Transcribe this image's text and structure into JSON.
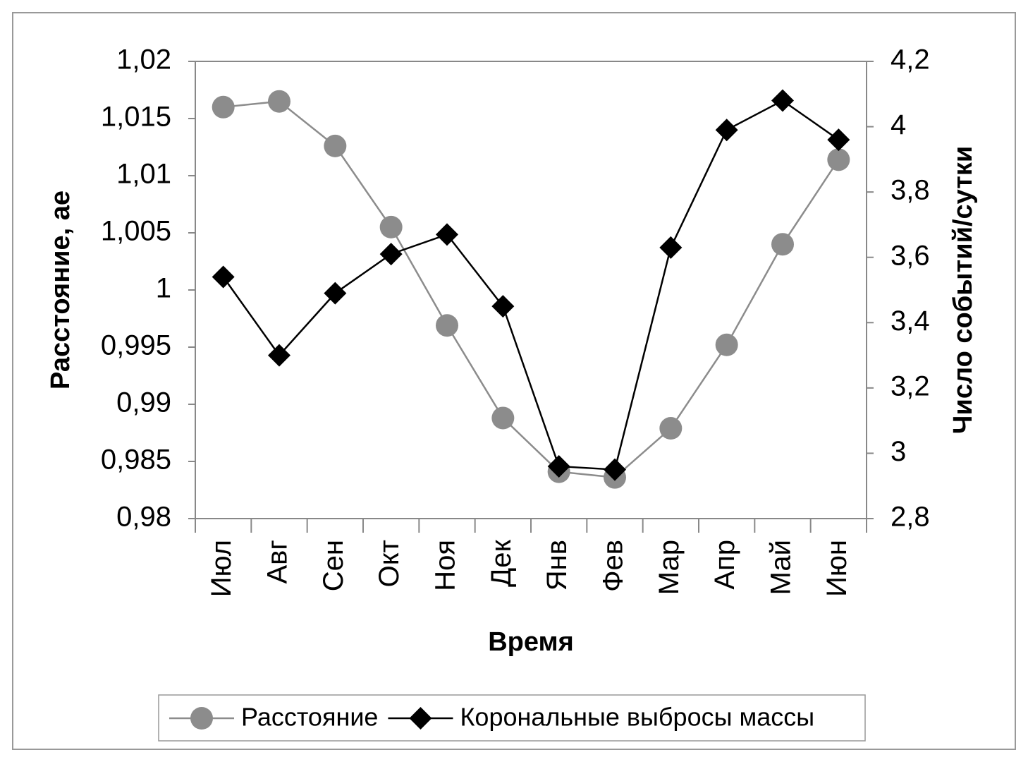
{
  "chart_data": {
    "type": "line",
    "x_label": "Время",
    "y_label": "Расстояние, ае",
    "y2_label": "Число событий/сутки",
    "categories": [
      "Июл",
      "Авг",
      "Сен",
      "Окт",
      "Ноя",
      "Дек",
      "Янв",
      "Фев",
      "Мар",
      "Апр",
      "Май",
      "Июн"
    ],
    "series": [
      {
        "name": "Расстояние",
        "color": "#8c8c8c",
        "marker": "circle",
        "values": [
          1.016,
          1.0165,
          1.0126,
          1.0055,
          0.9969,
          0.9888,
          0.9841,
          0.9836,
          0.9879,
          0.9952,
          1.004,
          1.0114
        ]
      },
      {
        "name": "Корональные выбросы массы",
        "color": "#000000",
        "marker": "diamond",
        "axis": "y2",
        "values": [
          3.54,
          3.3,
          3.49,
          3.61,
          3.67,
          3.45,
          2.96,
          2.95,
          3.63,
          3.99,
          4.08,
          3.96
        ]
      }
    ],
    "ylim": [
      0.98,
      1.02
    ],
    "yticks": [
      {
        "value": 0.98,
        "label": "0,98"
      },
      {
        "value": 0.985,
        "label": "0,985"
      },
      {
        "value": 0.99,
        "label": "0,99"
      },
      {
        "value": 0.995,
        "label": "0,995"
      },
      1,
      {
        "value": 1.005,
        "label": "1,005"
      },
      {
        "value": 1.01,
        "label": "1,01"
      },
      {
        "value": 1.015,
        "label": "1,015"
      },
      {
        "value": 1.02,
        "label": "1,02"
      }
    ],
    "y2lim": [
      2.8,
      4.2
    ],
    "y2ticks": [
      {
        "value": 2.8,
        "label": "2,8"
      },
      3,
      {
        "value": 3.2,
        "label": "3,2"
      },
      {
        "value": 3.4,
        "label": "3,4"
      },
      {
        "value": 3.6,
        "label": "3,6"
      },
      {
        "value": 3.8,
        "label": "3,8"
      },
      4,
      {
        "value": 4.2,
        "label": "4,2"
      }
    ],
    "legend": "bottom"
  }
}
